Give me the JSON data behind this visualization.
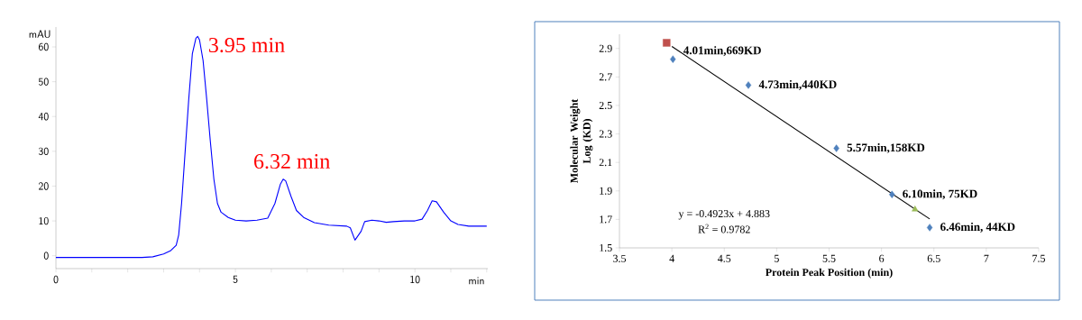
{
  "chart_data": [
    {
      "type": "line",
      "xlabel": "min",
      "ylabel": "mAU",
      "color": "#0000ff",
      "x": [
        0,
        2.4,
        2.7,
        3.0,
        3.2,
        3.35,
        3.42,
        3.5,
        3.6,
        3.7,
        3.8,
        3.9,
        3.95,
        4.0,
        4.1,
        4.2,
        4.3,
        4.4,
        4.5,
        4.6,
        4.8,
        5.0,
        5.3,
        5.6,
        5.9,
        6.1,
        6.25,
        6.33,
        6.4,
        6.55,
        6.7,
        6.9,
        7.2,
        7.6,
        8.1,
        8.2,
        8.33,
        8.5,
        8.6,
        8.8,
        9.0,
        9.2,
        9.4,
        9.7,
        10.0,
        10.2,
        10.35,
        10.48,
        10.6,
        10.8,
        11.0,
        11.2,
        11.5,
        12.0
      ],
      "values": [
        -0.5,
        -0.5,
        -0.3,
        0.5,
        1.5,
        3,
        6,
        15,
        30,
        45,
        58,
        62.5,
        63,
        62,
        56,
        45,
        33,
        22,
        15,
        12.5,
        11,
        10.2,
        10,
        10.2,
        10.8,
        15,
        20.5,
        22,
        21.5,
        17,
        13,
        11,
        9.5,
        8.8,
        8.5,
        8,
        4.5,
        7,
        9.8,
        10.2,
        10,
        9.6,
        9.8,
        10,
        10,
        10.5,
        13,
        15.8,
        15.5,
        12.5,
        10,
        9,
        8.5,
        8.5
      ],
      "xlim": [
        0,
        12.03
      ],
      "ylim": [
        -3.7,
        65.7
      ],
      "xticks": [
        0,
        {
          "value": 1,
          "label": null
        },
        {
          "value": 2,
          "label": null
        },
        {
          "value": 3,
          "label": null
        },
        {
          "value": 4,
          "label": null
        },
        5,
        {
          "value": 6,
          "label": null
        },
        {
          "value": 7,
          "label": null
        },
        {
          "value": 8,
          "label": null
        },
        {
          "value": 9,
          "label": null
        },
        10,
        {
          "value": 11,
          "label": null
        },
        {
          "value": 12,
          "label": null
        }
      ],
      "yticks": [
        0,
        10,
        20,
        30,
        40,
        50,
        60
      ],
      "annotations": [
        {
          "text": "3.95 min",
          "x": 3.95,
          "y": 63
        },
        {
          "text": "6.32 min",
          "x": 6.32,
          "y": 22
        }
      ]
    },
    {
      "type": "scatter",
      "xlabel": "Protein Peak Position (min)",
      "ylabel": "Molecular Weight Log (KD)",
      "xlim": [
        3.5,
        7.5
      ],
      "ylim": [
        1.5,
        3.0
      ],
      "xticks": [
        3.5,
        4,
        4.5,
        5,
        5.5,
        6,
        6.5,
        7,
        7.5
      ],
      "yticks": [
        1.5,
        1.7,
        1.9,
        2.1,
        2.3,
        2.5,
        2.7,
        2.9
      ],
      "series": [
        {
          "type": "line",
          "color": "#000000",
          "marker": "none",
          "x": [
            4.0,
            6.46
          ],
          "values": [
            2.914,
            1.703
          ]
        },
        {
          "color": "#4f81bd",
          "marker": "diamond",
          "x": [
            4.01,
            4.73,
            5.57,
            6.1,
            6.46
          ],
          "values": [
            2.825,
            2.643,
            2.199,
            1.875,
            1.643
          ]
        },
        {
          "color": "#c0504d",
          "marker": "square",
          "x": [
            3.95
          ],
          "values": [
            2.94
          ]
        },
        {
          "color": "#9bbb59",
          "marker": "triangle",
          "x": [
            6.32
          ],
          "values": [
            1.77
          ]
        }
      ],
      "annotations": [
        {
          "text": "4.01min,669KD",
          "x": 4.01,
          "y": 2.825
        },
        {
          "text": "4.73min,440KD",
          "x": 4.73,
          "y": 2.643
        },
        {
          "text": "5.57min,158KD",
          "x": 5.57,
          "y": 2.199
        },
        {
          "text": "6.10min, 75KD",
          "x": 6.1,
          "y": 1.875
        },
        {
          "text": "6.46min, 44KD",
          "x": 6.46,
          "y": 1.643
        },
        "y = -0.4923x + 4.883",
        "R$^{2}$ = 0.9782"
      ]
    }
  ]
}
